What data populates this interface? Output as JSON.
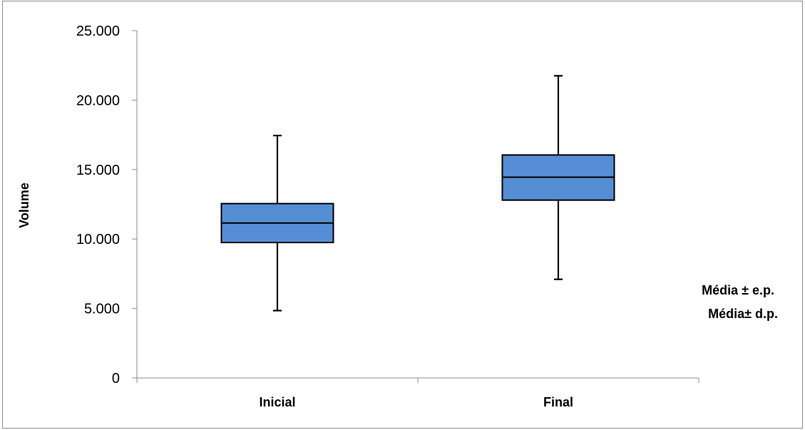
{
  "chart_data": {
    "type": "box",
    "ylabel": "Volume",
    "ylim": [
      0,
      25000
    ],
    "yticks": [
      0,
      5000,
      10000,
      15000,
      20000,
      25000
    ],
    "ytick_labels": [
      "0",
      "5.000",
      "10.000",
      "15.000",
      "20.000",
      "25.000"
    ],
    "categories": [
      "Inicial",
      "Final"
    ],
    "boxes": [
      {
        "category": "Inicial",
        "mean": 11150,
        "box_low": 9750,
        "box_high": 12550,
        "whisker_low": 4850,
        "whisker_high": 17450
      },
      {
        "category": "Final",
        "mean": 14450,
        "box_low": 12800,
        "box_high": 16050,
        "whisker_low": 7100,
        "whisker_high": 21750
      }
    ],
    "box_color": "#558ed5",
    "grid": false,
    "legend_lines": [
      "Média ± e.p.",
      "Média± d.p."
    ],
    "legend_position": "right"
  }
}
